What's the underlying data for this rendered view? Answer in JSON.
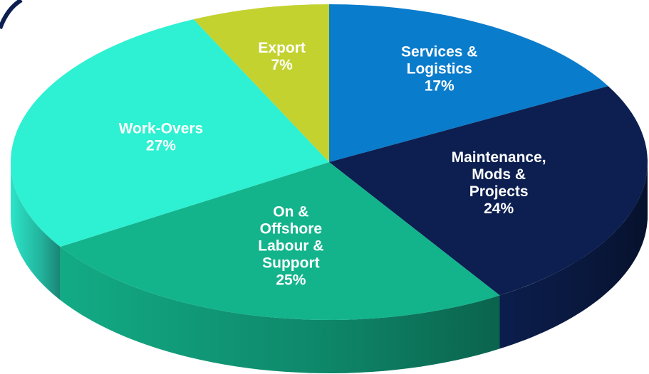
{
  "chart_data": {
    "type": "pie3d",
    "categories": [
      [
        "Services &",
        "Logistics"
      ],
      [
        "Maintenance,",
        "Mods &",
        "Projects"
      ],
      [
        "On &",
        "Offshore",
        "Labour &",
        "Support"
      ],
      [
        "Work-Overs"
      ],
      [
        "Export"
      ]
    ],
    "values": [
      17,
      24,
      25,
      27,
      7
    ],
    "value_labels": [
      "17%",
      "24%",
      "25%",
      "27%",
      "7%"
    ],
    "colors": [
      "#0a7ccc",
      "#0c1f50",
      "#13b48c",
      "#2ef0d2",
      "#c3d22f"
    ]
  }
}
